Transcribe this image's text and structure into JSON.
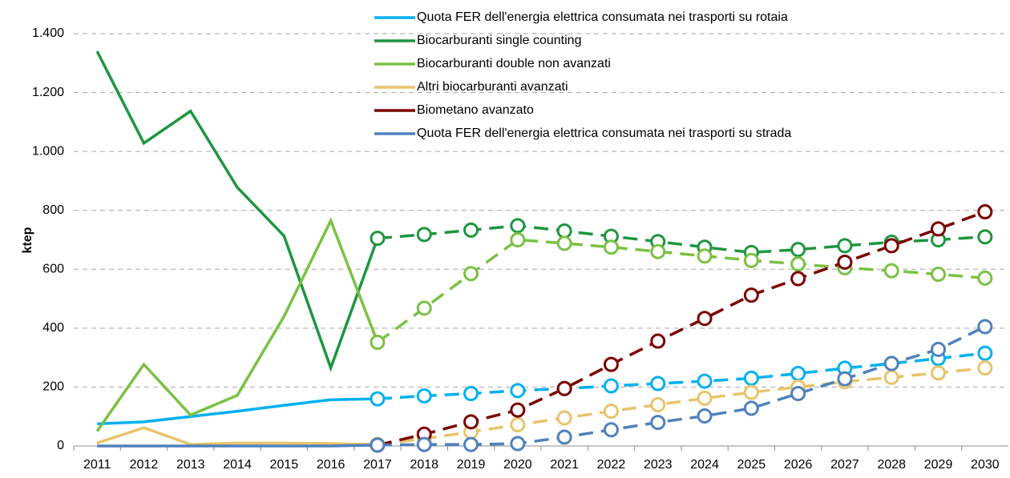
{
  "chart_data": {
    "type": "line",
    "y_label": "ktep",
    "categories": [
      "2011",
      "2012",
      "2013",
      "2014",
      "2015",
      "2016",
      "2017",
      "2018",
      "2019",
      "2020",
      "2021",
      "2022",
      "2023",
      "2024",
      "2025",
      "2026",
      "2027",
      "2028",
      "2029",
      "2030"
    ],
    "forecast_from": "2017",
    "ylim": [
      0,
      1400
    ],
    "yticks": [
      0,
      200,
      400,
      600,
      800,
      {
        "value": 1000,
        "label": "1.000"
      },
      {
        "value": 1200,
        "label": "1.200"
      },
      {
        "value": 1400,
        "label": "1.400"
      }
    ],
    "grid": true,
    "series": [
      {
        "name": "Quota FER dell'energia elettrica consumata nei trasporti su rotaia",
        "color": "#00b0f0",
        "values": [
          75,
          82,
          100,
          118,
          138,
          157,
          160,
          170,
          178,
          188,
          195,
          204,
          212,
          220,
          230,
          246,
          264,
          280,
          297,
          315
        ]
      },
      {
        "name": "Biocarburanti single counting",
        "color": "#1e9640",
        "values": [
          1340,
          1028,
          1137,
          878,
          713,
          265,
          705,
          718,
          733,
          748,
          730,
          712,
          694,
          675,
          657,
          667,
          680,
          692,
          700,
          710
        ]
      },
      {
        "name": "Biocarburanti double non avanzati",
        "color": "#7ac143",
        "values": [
          50,
          277,
          105,
          172,
          440,
          765,
          352,
          468,
          585,
          700,
          688,
          675,
          660,
          645,
          630,
          618,
          605,
          595,
          583,
          570
        ]
      },
      {
        "name": "Altri biocarburanti avanzati",
        "color": "#e8c46a",
        "values": [
          10,
          62,
          5,
          10,
          10,
          8,
          5,
          25,
          48,
          72,
          95,
          118,
          140,
          162,
          182,
          200,
          218,
          233,
          248,
          265
        ]
      },
      {
        "name": "Biometano avanzato",
        "color": "#7b0000",
        "values": [
          null,
          null,
          null,
          null,
          null,
          null,
          3,
          40,
          82,
          122,
          195,
          277,
          356,
          433,
          512,
          568,
          624,
          680,
          737,
          795
        ]
      },
      {
        "name": "Quota FER dell'energia elettrica consumata nei trasporti su strada",
        "color": "#4f81bd",
        "values": [
          0,
          0,
          0,
          0,
          0,
          0,
          3,
          5,
          5,
          8,
          30,
          55,
          80,
          102,
          128,
          178,
          228,
          280,
          328,
          405
        ]
      }
    ]
  }
}
